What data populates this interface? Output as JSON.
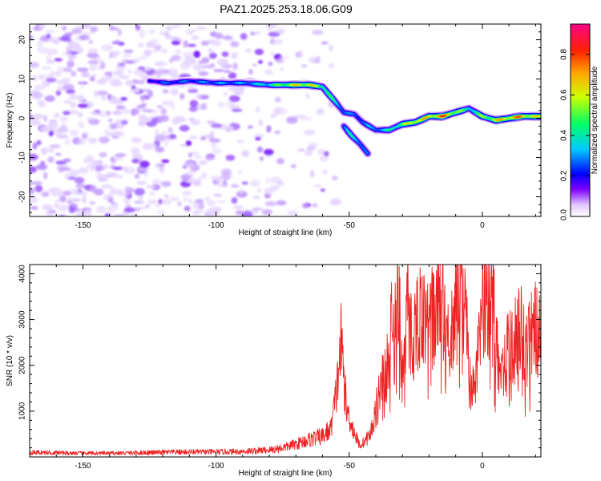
{
  "title": "PAZ1.2025.253.18.06.G09",
  "chart_data": [
    {
      "type": "heatmap",
      "name": "spectrogram",
      "xlabel": "Height of straight line (km)",
      "ylabel": "Frequency (Hz)",
      "xlim": [
        -170,
        22
      ],
      "ylim": [
        -25,
        24
      ],
      "xticks": [
        "-150",
        "-100",
        "-50",
        "0"
      ],
      "xtick_values": [
        -150,
        -100,
        -50,
        0
      ],
      "yticks": [
        "20",
        "10",
        "0",
        "-10",
        "-20"
      ],
      "ytick_values": [
        20,
        10,
        0,
        -10,
        -20
      ],
      "colorbar": {
        "label": "Normalized spectral amplitude",
        "range": [
          0,
          0.95
        ],
        "ticks": [
          "0.0",
          "0.2",
          "0.4",
          "0.6",
          "0.8"
        ],
        "tick_values": [
          0.0,
          0.2,
          0.4,
          0.6,
          0.8
        ],
        "colors": [
          "#ffffff",
          "#8000ff",
          "#0000ff",
          "#00ffff",
          "#00ff00",
          "#ffff00",
          "#ff8000",
          "#ff0000",
          "#ff00a0"
        ]
      },
      "ridge": {
        "x": [
          -125,
          -118,
          -110,
          -100,
          -90,
          -80,
          -72,
          -65,
          -60,
          -55,
          -52,
          -48,
          -45,
          -40,
          -35,
          -30,
          -25,
          -20,
          -15,
          -10,
          -5,
          0,
          5,
          10,
          15,
          20,
          22
        ],
        "y": [
          9.5,
          9.0,
          9.5,
          9.0,
          9.0,
          8.5,
          8.5,
          8.5,
          8.0,
          4.0,
          1.5,
          1.0,
          -1.0,
          -3.0,
          -3.0,
          -1.5,
          -1.0,
          0.5,
          0.5,
          1.5,
          2.5,
          0.5,
          -0.5,
          0.0,
          0.5,
          0.5,
          0.5
        ],
        "amplitude": [
          0.25,
          0.3,
          0.3,
          0.35,
          0.35,
          0.45,
          0.7,
          0.75,
          0.6,
          0.45,
          0.35,
          0.3,
          0.35,
          0.35,
          0.45,
          0.6,
          0.8,
          0.75,
          0.9,
          0.7,
          0.45,
          0.6,
          0.75,
          0.8,
          0.85,
          0.7,
          0.7
        ]
      },
      "branch": {
        "x": [
          -52,
          -49,
          -46,
          -43
        ],
        "y": [
          -2.0,
          -4.5,
          -6.5,
          -9.0
        ],
        "amplitude": [
          0.35,
          0.45,
          0.4,
          0.3
        ]
      }
    },
    {
      "type": "line",
      "name": "snr",
      "xlabel": "Height of straight line (km)",
      "ylabel": "SNR (10 * v/v)",
      "xlim": [
        -170,
        22
      ],
      "ylim": [
        0,
        4200
      ],
      "xticks": [
        "-150",
        "-100",
        "-50",
        "0"
      ],
      "xtick_values": [
        -150,
        -100,
        -50,
        0
      ],
      "yticks": [
        "1000",
        "2000",
        "3000",
        "4000"
      ],
      "ytick_values": [
        1000,
        2000,
        3000,
        4000
      ],
      "color": "#ee2222",
      "x": [
        -170,
        -160,
        -150,
        -140,
        -130,
        -120,
        -110,
        -100,
        -90,
        -80,
        -75,
        -70,
        -65,
        -60,
        -57,
        -55,
        -53,
        -52,
        -51,
        -50,
        -48,
        -46,
        -44,
        -42,
        -40,
        -38,
        -36,
        -34,
        -33,
        -32,
        -31,
        -30,
        -29,
        -28,
        -27,
        -26,
        -24,
        -22,
        -20,
        -18,
        -16,
        -14,
        -12,
        -10,
        -8,
        -6,
        -4,
        -2,
        0,
        2,
        3,
        4,
        5,
        6,
        8,
        10,
        12,
        14,
        16,
        18,
        20,
        22
      ],
      "y": [
        100,
        90,
        80,
        80,
        90,
        100,
        110,
        110,
        120,
        150,
        200,
        280,
        380,
        450,
        600,
        1300,
        2500,
        1800,
        1000,
        900,
        500,
        250,
        350,
        500,
        1000,
        1700,
        1800,
        2900,
        2500,
        4100,
        3000,
        1700,
        2500,
        3300,
        2700,
        2600,
        3100,
        3000,
        2800,
        3200,
        3500,
        3000,
        2500,
        3700,
        3600,
        3000,
        1300,
        1900,
        3300,
        3500,
        4100,
        3800,
        2300,
        2200,
        2200,
        2300,
        2500,
        2900,
        2300,
        2600,
        2900,
        2500
      ]
    }
  ]
}
